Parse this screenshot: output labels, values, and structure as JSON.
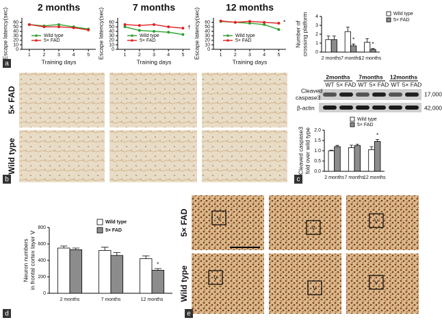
{
  "panel_labels": [
    "a",
    "b",
    "c",
    "d",
    "e"
  ],
  "image_labels": {
    "b_rows": [
      "5× FAD",
      "Wild type"
    ],
    "e_rows": [
      "5× FAD",
      "Wild type"
    ],
    "layer": "V"
  },
  "blot": {
    "groups": [
      "2months",
      "7months",
      "12months"
    ],
    "lanes": [
      "WT",
      "5× FAD",
      "WT",
      "5× FAD",
      "WT",
      "5× FAD"
    ],
    "row_labels": [
      "Cleaved",
      "caspase3",
      "β-actin"
    ],
    "weights": [
      "17,000",
      "42,000"
    ]
  },
  "chart_data": [
    {
      "type": "line",
      "title": "2 months",
      "xlabel": "Training days",
      "ylabel": "Escape latency(sec)",
      "x": [
        1,
        2,
        3,
        4,
        5
      ],
      "xlim": [
        0.5,
        5.5
      ],
      "xticks": [
        1,
        2,
        3,
        4,
        5
      ],
      "ylim": [
        0,
        70
      ],
      "yticks": [
        0,
        10,
        20,
        30,
        40,
        50,
        60
      ],
      "legend": "lower left",
      "series": [
        {
          "name": "Wild type",
          "color": "#2ca02c",
          "values": [
            55,
            52,
            55,
            50,
            45
          ]
        },
        {
          "name": "5× FAD",
          "color": "#e02020",
          "values": [
            55,
            50,
            50,
            48,
            43
          ]
        }
      ]
    },
    {
      "type": "line",
      "title": "7 months",
      "xlabel": "Training days",
      "ylabel": "Escape latency(sec)",
      "annotation": "†",
      "x": [
        1,
        2,
        3,
        4,
        5
      ],
      "xlim": [
        0.5,
        5.5
      ],
      "xticks": [
        1,
        2,
        3,
        4,
        5
      ],
      "ylim": [
        0,
        70
      ],
      "yticks": [
        0,
        10,
        20,
        30,
        40,
        50,
        60
      ],
      "legend": "lower left",
      "series": [
        {
          "name": "Wild type",
          "color": "#2ca02c",
          "values": [
            50,
            42,
            40,
            38,
            33
          ]
        },
        {
          "name": "5× FAD",
          "color": "#e02020",
          "values": [
            55,
            53,
            55,
            50,
            47
          ]
        }
      ]
    },
    {
      "type": "line",
      "title": "12 months",
      "xlabel": "Training days",
      "ylabel": "Escape latency(sec)",
      "annotation": "*",
      "x": [
        1,
        2,
        3,
        4,
        5
      ],
      "xlim": [
        0.5,
        5.5
      ],
      "xticks": [
        1,
        2,
        3,
        4,
        5
      ],
      "ylim": [
        0,
        70
      ],
      "yticks": [
        0,
        10,
        20,
        30,
        40,
        50,
        60
      ],
      "legend": "lower left",
      "series": [
        {
          "name": "Wild type",
          "color": "#2ca02c",
          "values": [
            62,
            60,
            58,
            55,
            44
          ]
        },
        {
          "name": "5× FAD",
          "color": "#e02020",
          "values": [
            63,
            60,
            62,
            60,
            58
          ]
        }
      ]
    },
    {
      "type": "bar",
      "ylabel": [
        "Number of",
        "crossing platform"
      ],
      "categories": [
        "2 months",
        "7 months",
        "12 months"
      ],
      "ylim": [
        0,
        4
      ],
      "yticks": [
        0,
        1,
        2,
        3,
        4
      ],
      "legend": "outside right",
      "annotations": [
        null,
        "*",
        "*"
      ],
      "series": [
        {
          "name": "Wild type",
          "color": "#ffffff",
          "values": [
            1.4,
            2.3,
            1.1
          ],
          "errors": [
            0.4,
            0.5,
            0.4
          ]
        },
        {
          "name": "5× FAD",
          "color": "#8c8c8c",
          "values": [
            1.4,
            0.7,
            0.3
          ],
          "errors": [
            0.4,
            0.2,
            0.1
          ]
        }
      ]
    },
    {
      "type": "bar",
      "ylabel": [
        "Cleaved caspase3",
        "fold over wild type"
      ],
      "categories": [
        "2 months",
        "7 months",
        "12 months"
      ],
      "ylim": [
        0,
        2
      ],
      "yticks": [
        {
          "value": 0,
          "label": "0.0"
        },
        {
          "value": 0.5,
          "label": "0.5"
        },
        {
          "value": 1,
          "label": "1.0"
        },
        {
          "value": 1.5,
          "label": "1.5"
        },
        {
          "value": 2,
          "label": "2.0"
        }
      ],
      "legend": "top",
      "annotations": [
        null,
        null,
        "*"
      ],
      "series": [
        {
          "name": "Wild type",
          "color": "#ffffff",
          "values": [
            1.0,
            1.15,
            1.05
          ],
          "errors": [
            0.03,
            0.12,
            0.15
          ]
        },
        {
          "name": "5× FAD",
          "color": "#8c8c8c",
          "values": [
            1.2,
            1.25,
            1.45
          ],
          "errors": [
            0.06,
            0.07,
            0.1
          ]
        }
      ]
    },
    {
      "type": "bar",
      "ylabel": [
        "Neuron numbers",
        "in frontal cortex layer Ⅴ"
      ],
      "categories": [
        "2 months",
        "7 months",
        "12 months"
      ],
      "ylim": [
        0,
        800
      ],
      "yticks": [
        0,
        200,
        400,
        600,
        800
      ],
      "legend": "upper center",
      "annotations": [
        null,
        null,
        "*"
      ],
      "series": [
        {
          "name": "Wild type",
          "color": "#ffffff",
          "values": [
            550,
            520,
            420
          ],
          "errors": [
            25,
            40,
            35
          ]
        },
        {
          "name": "5× FAD",
          "color": "#8c8c8c",
          "values": [
            530,
            460,
            280
          ],
          "errors": [
            20,
            35,
            20
          ]
        }
      ]
    }
  ]
}
